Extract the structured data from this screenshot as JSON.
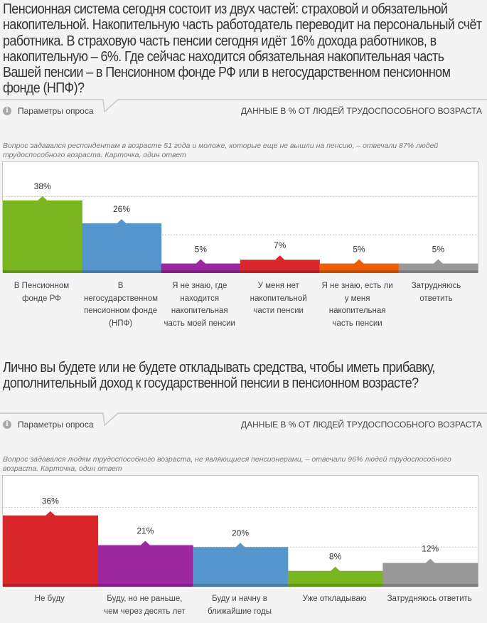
{
  "sections": [
    {
      "question": "Пенсионная система сегодня состоит из двух частей: страховой и обязательной накопительной. Накопительную часть работодатель переводит на персональный счёт работника. В страховую часть пенсии сегодня идёт 16% дохода работников, в накопительную – 6%. Где сейчас находится обязательная накопительная часть Вашей пенсии – в Пенсионном фонде РФ или в негосударственном пенсионном фонде (НПФ)?",
      "params_label": "Параметры опроса",
      "data_note": "ДАННЫЕ В % ОТ ЛЮДЕЙ ТРУДОСПОСОБНОГО ВОЗРАСТА",
      "description": "Вопрос задавался респондентам в возрасте 51 года и моложе, которые еще не вышли на пенсию, – отвечали 87% людей трудоспособного возраста. Карточка, один ответ"
    },
    {
      "question": "Лично вы будете или не будете откладывать средства, чтобы иметь прибавку, дополнительный доход к государственной пенсии в пенсионном возрасте?",
      "params_label": "Параметры опроса",
      "data_note": "ДАННЫЕ В % ОТ ЛЮДЕЙ ТРУДОСПОСОБНОГО ВОЗРАСТА",
      "description": "Вопрос задавался людям трудоспособного возраста, не являющиеся пенсионерами, – отвечали 96% людей трудоспособного возраста. Карточка, один ответ"
    }
  ],
  "icons": {
    "info": "info-icon"
  },
  "info_glyph": "i",
  "chart_data": [
    {
      "type": "bar",
      "title": "",
      "xlabel": "",
      "ylabel": "",
      "ylim": [
        0,
        58
      ],
      "gridlines": [
        20,
        40
      ],
      "grid": true,
      "categories": [
        "В Пенсионном фонде РФ",
        "В негосударственном пенсионном фонде (НПФ)",
        "Я не знаю, где находится накопительная часть моей пенсии",
        "У меня нет накопительной части пенсии",
        "Я не знаю, есть ли у меня накопительная часть пенсии",
        "Затрудняюсь ответить"
      ],
      "values": [
        38,
        26,
        5,
        7,
        5,
        5
      ],
      "labels": [
        "38%",
        "26%",
        "5%",
        "7%",
        "5%",
        "5%"
      ],
      "colors": [
        "#78b51e",
        "#5796cc",
        "#9c27a0",
        "#d9272b",
        "#ee5e05",
        "#999999"
      ]
    },
    {
      "type": "bar",
      "title": "",
      "xlabel": "",
      "ylabel": "",
      "ylim": [
        0,
        56
      ],
      "gridlines": [
        20,
        40
      ],
      "grid": true,
      "categories": [
        "Не буду",
        "Буду, но не раньше, чем через десять лет",
        "Буду и начну в ближайшие годы",
        "Уже откладываю",
        "Затрудняюсь ответить"
      ],
      "values": [
        36,
        21,
        20,
        8,
        12
      ],
      "labels": [
        "36%",
        "21%",
        "20%",
        "8%",
        "12%"
      ],
      "colors": [
        "#d9272b",
        "#9c27a0",
        "#5796cc",
        "#78b51e",
        "#999999"
      ]
    }
  ]
}
